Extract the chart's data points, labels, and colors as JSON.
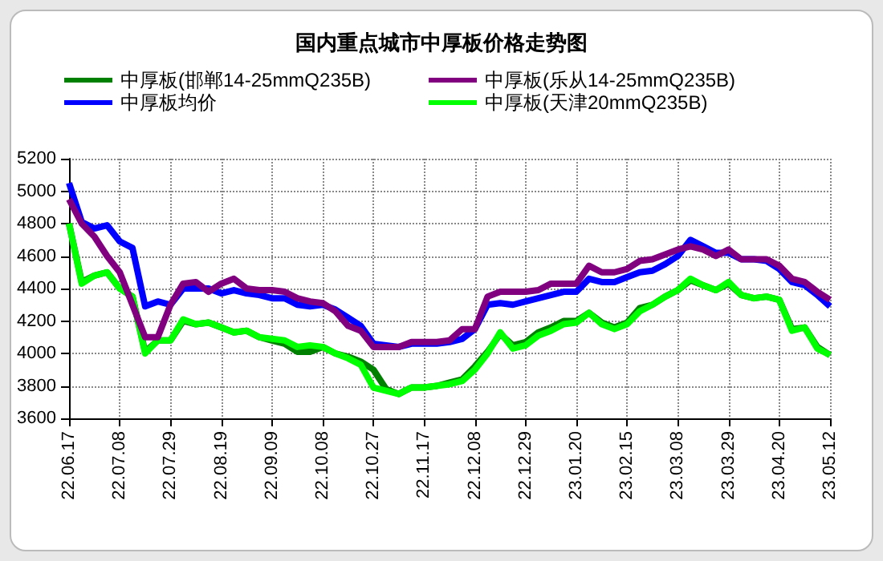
{
  "chart_data": {
    "type": "line",
    "title": "国内重点城市中厚板价格走势图",
    "categories": [
      "22.06.17",
      null,
      null,
      null,
      "22.07.08",
      null,
      null,
      null,
      "22.07.29",
      null,
      null,
      null,
      "22.08.19",
      null,
      null,
      null,
      "22.09.09",
      null,
      null,
      null,
      "22.10.08",
      null,
      null,
      null,
      "22.10.27",
      null,
      null,
      null,
      "22.11.17",
      null,
      null,
      null,
      "22.12.08",
      null,
      null,
      null,
      "22.12.29",
      null,
      null,
      null,
      "23.01.20",
      null,
      null,
      null,
      "23.02.15",
      null,
      null,
      null,
      "23.03.08",
      null,
      null,
      null,
      "23.03.29",
      null,
      null,
      null,
      "23.04.20",
      null,
      null,
      null,
      "23.05.12"
    ],
    "series": [
      {
        "name": "中厚板(邯郸14-25mmQ235B)",
        "color": "#008000",
        "values": [
          4800,
          4440,
          4480,
          4500,
          4400,
          4350,
          4010,
          4080,
          4080,
          4200,
          4180,
          4190,
          4160,
          4130,
          4140,
          4100,
          4080,
          4060,
          4010,
          4010,
          4040,
          4000,
          3980,
          3950,
          3900,
          3780,
          3750,
          3790,
          3790,
          3800,
          3820,
          3840,
          3920,
          4010,
          4120,
          4050,
          4070,
          4130,
          4160,
          4200,
          4200,
          4250,
          4190,
          4160,
          4190,
          4280,
          4300,
          4350,
          4390,
          4450,
          4420,
          4390,
          4430,
          4360,
          4340,
          4350,
          4330,
          4150,
          4160,
          4040,
          3990
        ]
      },
      {
        "name": "中厚板(乐从14-25mmQ235B)",
        "color": "#800080",
        "values": [
          4950,
          4800,
          4720,
          4600,
          4500,
          4300,
          4100,
          4100,
          4300,
          4430,
          4440,
          4380,
          4430,
          4460,
          4400,
          4390,
          4390,
          4380,
          4340,
          4320,
          4310,
          4260,
          4170,
          4140,
          4040,
          4040,
          4040,
          4070,
          4070,
          4070,
          4080,
          4150,
          4150,
          4350,
          4380,
          4380,
          4380,
          4390,
          4430,
          4430,
          4430,
          4540,
          4500,
          4500,
          4520,
          4570,
          4580,
          4610,
          4640,
          4660,
          4640,
          4600,
          4640,
          4580,
          4580,
          4580,
          4540,
          4460,
          4440,
          4380,
          4330
        ]
      },
      {
        "name": "中厚板均价",
        "color": "#0000ff",
        "values": [
          5050,
          4810,
          4770,
          4790,
          4690,
          4650,
          4290,
          4320,
          4300,
          4400,
          4400,
          4400,
          4370,
          4390,
          4370,
          4360,
          4340,
          4340,
          4300,
          4290,
          4300,
          4270,
          4220,
          4170,
          4060,
          4050,
          4040,
          4060,
          4060,
          4060,
          4070,
          4090,
          4150,
          4300,
          4310,
          4300,
          4320,
          4340,
          4360,
          4380,
          4380,
          4460,
          4440,
          4440,
          4470,
          4500,
          4510,
          4550,
          4600,
          4700,
          4660,
          4620,
          4620,
          4580,
          4580,
          4570,
          4520,
          4440,
          4420,
          4360,
          4290
        ]
      },
      {
        "name": "中厚板(天津20mmQ235B)",
        "color": "#00ff00",
        "values": [
          4800,
          4430,
          4480,
          4500,
          4400,
          4350,
          4000,
          4080,
          4080,
          4210,
          4180,
          4190,
          4160,
          4130,
          4140,
          4100,
          4090,
          4080,
          4040,
          4050,
          4040,
          4000,
          3970,
          3930,
          3790,
          3770,
          3750,
          3790,
          3790,
          3800,
          3810,
          3830,
          3900,
          4000,
          4130,
          4030,
          4050,
          4110,
          4140,
          4180,
          4190,
          4250,
          4180,
          4150,
          4180,
          4260,
          4300,
          4350,
          4390,
          4460,
          4420,
          4390,
          4440,
          4360,
          4340,
          4350,
          4330,
          4140,
          4160,
          4030,
          3990
        ]
      }
    ],
    "ylim": [
      3600,
      5200
    ],
    "yticks": [
      3600,
      3800,
      4000,
      4200,
      4400,
      4600,
      4800,
      5000,
      5200
    ],
    "grid": true,
    "legend": "top",
    "marker": "none",
    "line_style": "solid"
  }
}
